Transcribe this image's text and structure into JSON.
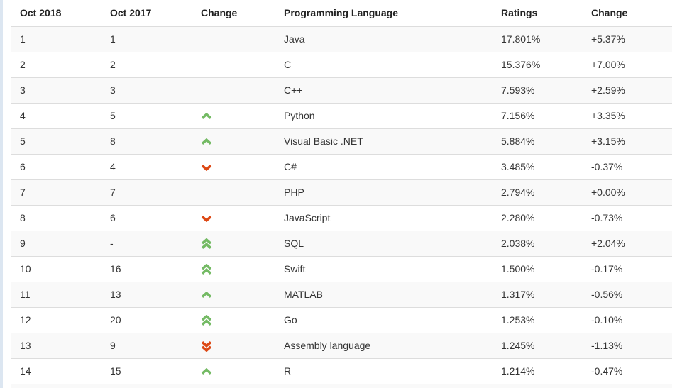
{
  "colors": {
    "up_arrow": "#74ba64",
    "down_arrow": "#dd4814",
    "stripe": "#f9f9f9",
    "border": "#dddddd",
    "left_edge": "#dce6f1"
  },
  "table": {
    "columns": [
      "Oct 2018",
      "Oct 2017",
      "Change",
      "Programming Language",
      "Ratings",
      "Change"
    ],
    "rows": [
      {
        "pos_2018": "1",
        "pos_2017": "1",
        "change": "none",
        "language": "Java",
        "ratings": "17.801%",
        "change_pct": "+5.37%"
      },
      {
        "pos_2018": "2",
        "pos_2017": "2",
        "change": "none",
        "language": "C",
        "ratings": "15.376%",
        "change_pct": "+7.00%"
      },
      {
        "pos_2018": "3",
        "pos_2017": "3",
        "change": "none",
        "language": "C++",
        "ratings": "7.593%",
        "change_pct": "+2.59%"
      },
      {
        "pos_2018": "4",
        "pos_2017": "5",
        "change": "up",
        "language": "Python",
        "ratings": "7.156%",
        "change_pct": "+3.35%"
      },
      {
        "pos_2018": "5",
        "pos_2017": "8",
        "change": "up",
        "language": "Visual Basic .NET",
        "ratings": "5.884%",
        "change_pct": "+3.15%"
      },
      {
        "pos_2018": "6",
        "pos_2017": "4",
        "change": "down",
        "language": "C#",
        "ratings": "3.485%",
        "change_pct": "-0.37%"
      },
      {
        "pos_2018": "7",
        "pos_2017": "7",
        "change": "none",
        "language": "PHP",
        "ratings": "2.794%",
        "change_pct": "+0.00%"
      },
      {
        "pos_2018": "8",
        "pos_2017": "6",
        "change": "down",
        "language": "JavaScript",
        "ratings": "2.280%",
        "change_pct": "-0.73%"
      },
      {
        "pos_2018": "9",
        "pos_2017": "-",
        "change": "up2",
        "language": "SQL",
        "ratings": "2.038%",
        "change_pct": "+2.04%"
      },
      {
        "pos_2018": "10",
        "pos_2017": "16",
        "change": "up2",
        "language": "Swift",
        "ratings": "1.500%",
        "change_pct": "-0.17%"
      },
      {
        "pos_2018": "11",
        "pos_2017": "13",
        "change": "up",
        "language": "MATLAB",
        "ratings": "1.317%",
        "change_pct": "-0.56%"
      },
      {
        "pos_2018": "12",
        "pos_2017": "20",
        "change": "up2",
        "language": "Go",
        "ratings": "1.253%",
        "change_pct": "-0.10%"
      },
      {
        "pos_2018": "13",
        "pos_2017": "9",
        "change": "down2",
        "language": "Assembly language",
        "ratings": "1.245%",
        "change_pct": "-1.13%"
      },
      {
        "pos_2018": "14",
        "pos_2017": "15",
        "change": "up",
        "language": "R",
        "ratings": "1.214%",
        "change_pct": "-0.47%"
      }
    ]
  }
}
